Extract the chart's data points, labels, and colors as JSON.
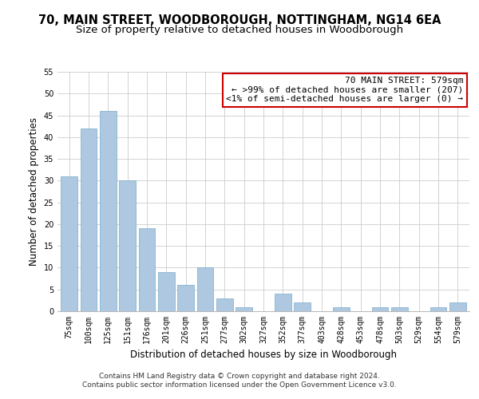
{
  "title": "70, MAIN STREET, WOODBOROUGH, NOTTINGHAM, NG14 6EA",
  "subtitle": "Size of property relative to detached houses in Woodborough",
  "xlabel": "Distribution of detached houses by size in Woodborough",
  "ylabel": "Number of detached properties",
  "categories": [
    "75sqm",
    "100sqm",
    "125sqm",
    "151sqm",
    "176sqm",
    "201sqm",
    "226sqm",
    "251sqm",
    "277sqm",
    "302sqm",
    "327sqm",
    "352sqm",
    "377sqm",
    "403sqm",
    "428sqm",
    "453sqm",
    "478sqm",
    "503sqm",
    "529sqm",
    "554sqm",
    "579sqm"
  ],
  "values": [
    31,
    42,
    46,
    30,
    19,
    9,
    6,
    10,
    3,
    1,
    0,
    4,
    2,
    0,
    1,
    0,
    1,
    1,
    0,
    1,
    2
  ],
  "bar_color": "#adc8e0",
  "bar_edge_color": "#7aacc8",
  "annotation_title": "70 MAIN STREET: 579sqm",
  "annotation_line1": "← >99% of detached houses are smaller (207)",
  "annotation_line2": "<1% of semi-detached houses are larger (0) →",
  "annotation_box_facecolor": "#ffffff",
  "annotation_box_edgecolor": "#cc0000",
  "footer_line1": "Contains HM Land Registry data © Crown copyright and database right 2024.",
  "footer_line2": "Contains public sector information licensed under the Open Government Licence v3.0.",
  "ylim": [
    0,
    55
  ],
  "yticks": [
    0,
    5,
    10,
    15,
    20,
    25,
    30,
    35,
    40,
    45,
    50,
    55
  ],
  "background_color": "#ffffff",
  "grid_color": "#cccccc",
  "title_fontsize": 10.5,
  "subtitle_fontsize": 9.5,
  "axis_label_fontsize": 8.5,
  "tick_fontsize": 7,
  "annotation_fontsize": 8,
  "footer_fontsize": 6.5
}
